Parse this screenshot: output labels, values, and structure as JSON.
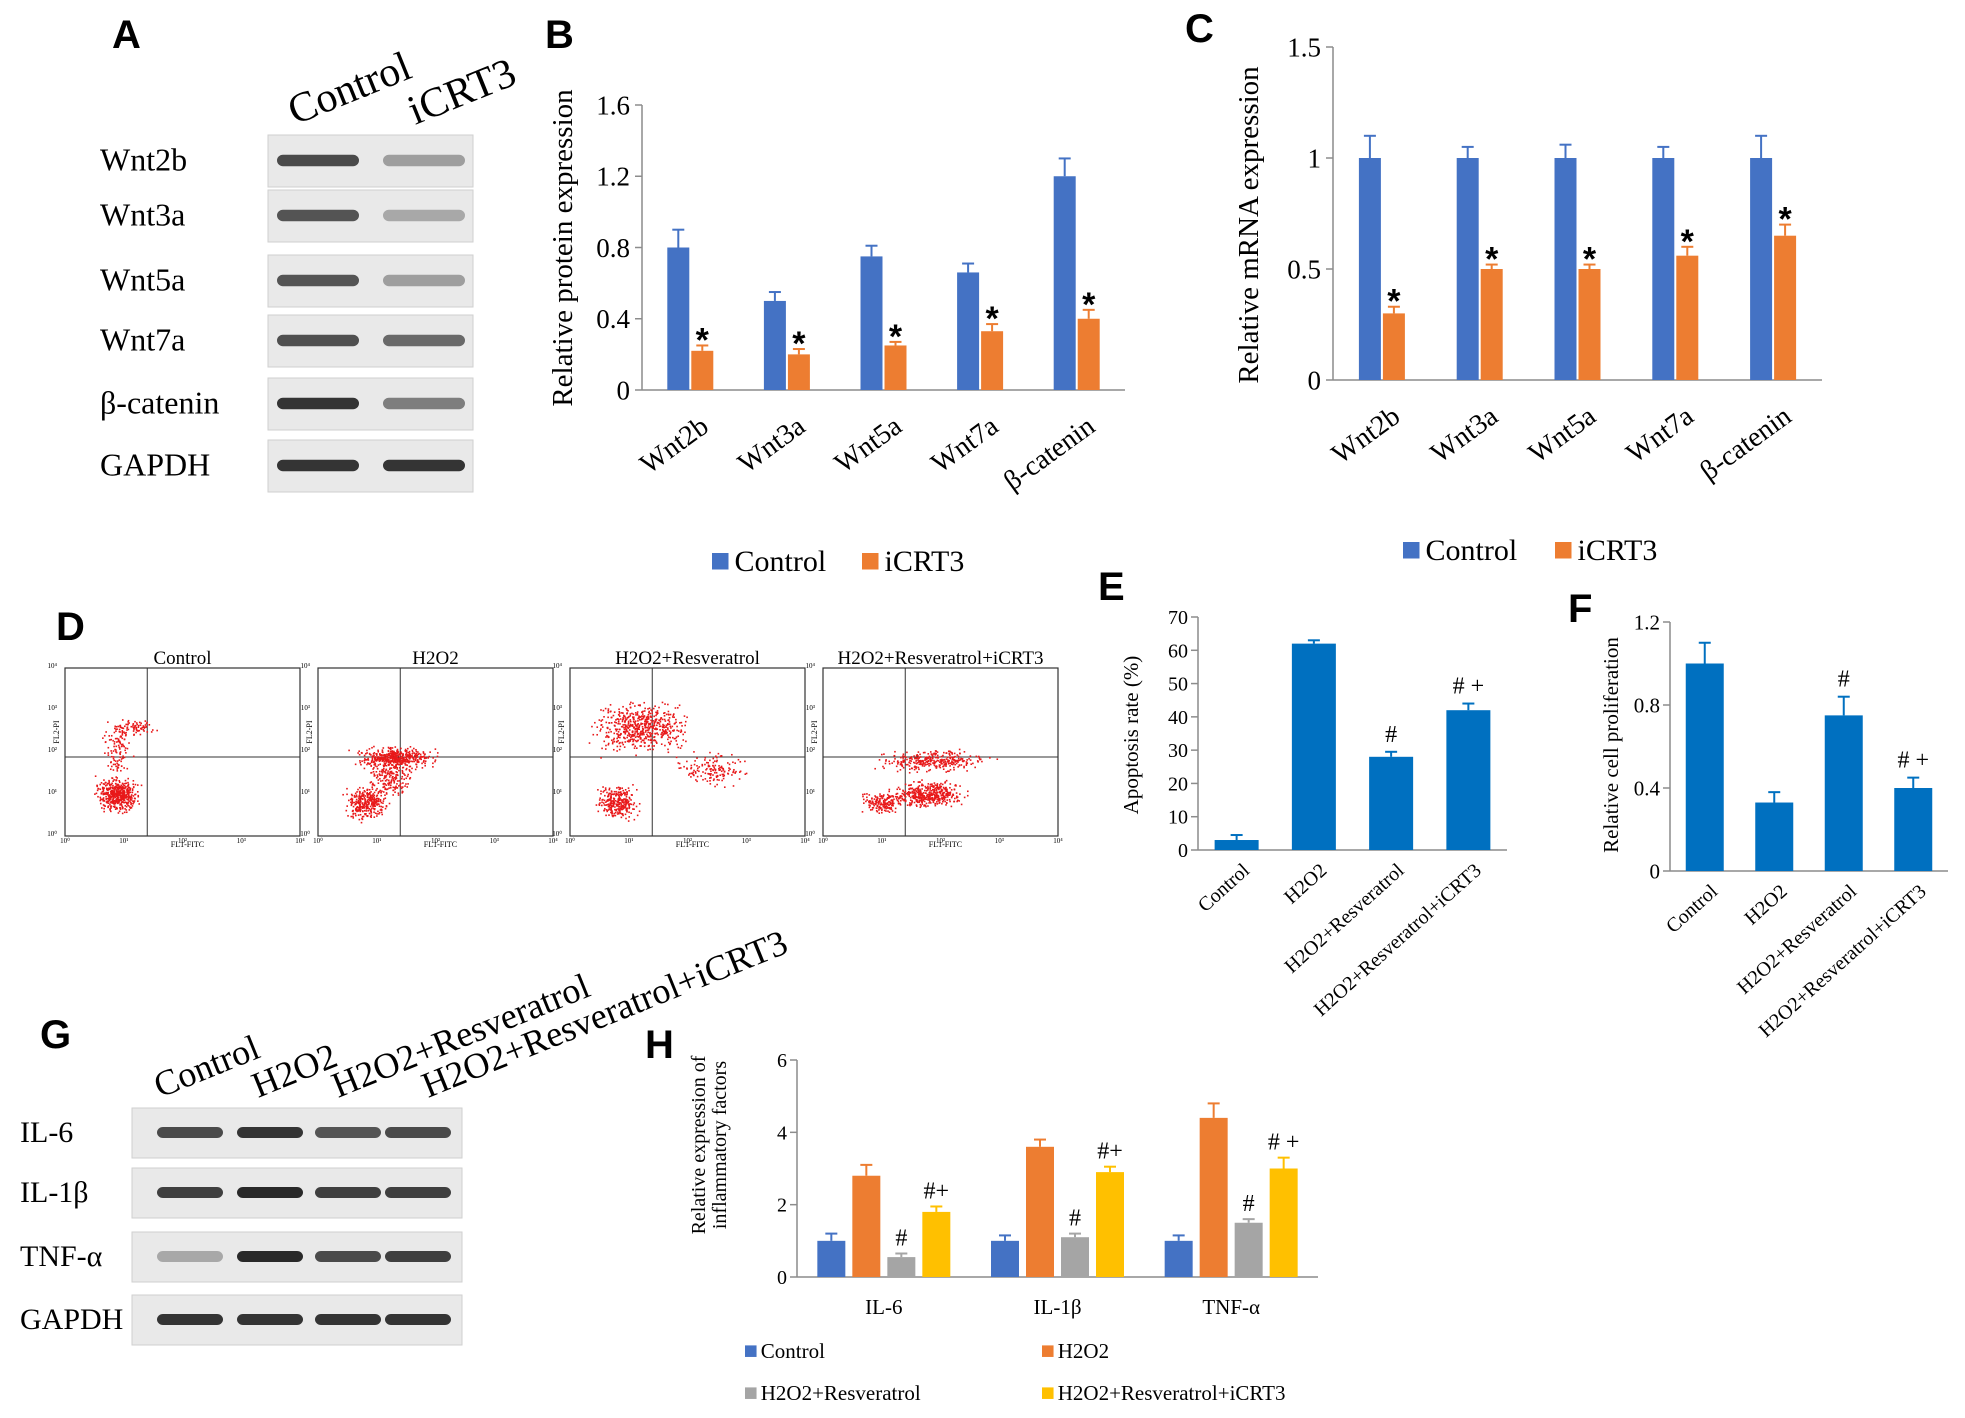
{
  "panels": {
    "A": {
      "letter": "A",
      "lanes": [
        "Control",
        "iCRT3"
      ],
      "bands": [
        "Wnt2b",
        "Wnt3a",
        "Wnt5a",
        "Wnt7a",
        "β-catenin",
        "GAPDH"
      ]
    },
    "D": {
      "letter": "D",
      "plots": [
        "Control",
        "H2O2",
        "H2O2+Resveratrol",
        "H2O2+Resveratrol+iCRT3"
      ],
      "axis_x": "FL1-FITC",
      "axis_y": "FL2-PI",
      "tick_labels": [
        "10⁰",
        "10¹",
        "10²",
        "10³",
        "10⁴"
      ]
    },
    "G": {
      "letter": "G",
      "lanes": [
        "Control",
        "H2O2",
        "H2O2+Resveratrol",
        "H2O2+Resveratrol+iCRT3"
      ],
      "bands": [
        "IL-6",
        "IL-1β",
        "TNF-α",
        "GAPDH"
      ]
    }
  },
  "colors": {
    "blue": "#4472c4",
    "orange": "#ed7d31",
    "gray": "#a5a5a5",
    "yellow": "#ffc000",
    "deepblue": "#0070c0",
    "flow_dots": "#e8191a"
  },
  "chart_data": [
    {
      "panel": "B",
      "type": "bar",
      "categories": [
        "Wnt2b",
        "Wnt3a",
        "Wnt5a",
        "Wnt7a",
        "β-catenin"
      ],
      "series": [
        {
          "name": "Control",
          "values": [
            0.8,
            0.5,
            0.75,
            0.66,
            1.2
          ],
          "errors": [
            0.1,
            0.05,
            0.06,
            0.05,
            0.1
          ]
        },
        {
          "name": "iCRT3",
          "values": [
            0.22,
            0.2,
            0.25,
            0.33,
            0.4
          ],
          "errors": [
            0.03,
            0.03,
            0.02,
            0.04,
            0.05
          ]
        }
      ],
      "marks": [
        "",
        "*"
      ],
      "ylabel": "Relative protein expression",
      "ylim": [
        0,
        1.6
      ],
      "yticks": [
        "0",
        "0.4",
        "0.8",
        "1.2",
        "1.6"
      ],
      "legend_position": "bottom"
    },
    {
      "panel": "C",
      "type": "bar",
      "categories": [
        "Wnt2b",
        "Wnt3a",
        "Wnt5a",
        "Wnt7a",
        "β-catenin"
      ],
      "series": [
        {
          "name": "Control",
          "values": [
            1.0,
            1.0,
            1.0,
            1.0,
            1.0
          ],
          "errors": [
            0.1,
            0.05,
            0.06,
            0.05,
            0.1
          ]
        },
        {
          "name": "iCRT3",
          "values": [
            0.3,
            0.5,
            0.5,
            0.56,
            0.65
          ],
          "errors": [
            0.03,
            0.02,
            0.02,
            0.04,
            0.05
          ]
        }
      ],
      "marks": [
        "",
        "*"
      ],
      "ylabel": "Relative mRNA expression",
      "ylim": [
        0,
        1.5
      ],
      "yticks": [
        "0",
        "0.5",
        "1",
        "1.5"
      ],
      "legend_position": "bottom"
    },
    {
      "panel": "E",
      "type": "bar",
      "categories": [
        "Control",
        "H2O2",
        "H2O2+Resveratrol",
        "H2O2+Resveratrol+iCRT3"
      ],
      "series": [
        {
          "values": [
            3,
            62,
            28,
            42
          ],
          "errors": [
            1.5,
            1,
            1.5,
            2
          ],
          "marks": [
            "",
            "",
            "#",
            "# +"
          ]
        }
      ],
      "ylabel": "Apoptosis rate (%)",
      "ylim": [
        0,
        70
      ],
      "yticks": [
        "0",
        "10",
        "20",
        "30",
        "40",
        "50",
        "60",
        "70"
      ]
    },
    {
      "panel": "F",
      "type": "bar",
      "categories": [
        "Control",
        "H2O2",
        "H2O2+Resveratrol",
        "H2O2+Resveratrol+iCRT3"
      ],
      "series": [
        {
          "values": [
            1.0,
            0.33,
            0.75,
            0.4
          ],
          "errors": [
            0.1,
            0.05,
            0.09,
            0.05
          ],
          "marks": [
            "",
            "",
            "#",
            "# +"
          ]
        }
      ],
      "ylabel": "Relative cell proliferation",
      "ylim": [
        0,
        1.2
      ],
      "yticks": [
        "0",
        "0.4",
        "0.8",
        "1.2"
      ]
    },
    {
      "panel": "H",
      "type": "bar",
      "categories": [
        "IL-6",
        "IL-1β",
        "TNF-α"
      ],
      "series": [
        {
          "name": "Control",
          "values": [
            1.0,
            1.0,
            1.0
          ],
          "errors": [
            0.2,
            0.15,
            0.15
          ],
          "marks": [
            "",
            "",
            ""
          ]
        },
        {
          "name": "H2O2",
          "values": [
            2.8,
            3.6,
            4.4
          ],
          "errors": [
            0.3,
            0.2,
            0.4
          ],
          "marks": [
            "",
            "",
            ""
          ]
        },
        {
          "name": "H2O2+Resveratrol",
          "values": [
            0.55,
            1.1,
            1.5
          ],
          "errors": [
            0.1,
            0.1,
            0.1
          ],
          "marks": [
            "#",
            "#",
            "#"
          ]
        },
        {
          "name": "H2O2+Resveratrol+iCRT3",
          "values": [
            1.8,
            2.9,
            3.0
          ],
          "errors": [
            0.15,
            0.15,
            0.3
          ],
          "marks": [
            "#+",
            "#+",
            "# +"
          ]
        }
      ],
      "ylabel": [
        "Relative expression of",
        "inflammatory factors"
      ],
      "ylim": [
        0,
        6
      ],
      "yticks": [
        "0",
        "2",
        "4",
        "6"
      ],
      "legend_position": "bottom"
    }
  ]
}
